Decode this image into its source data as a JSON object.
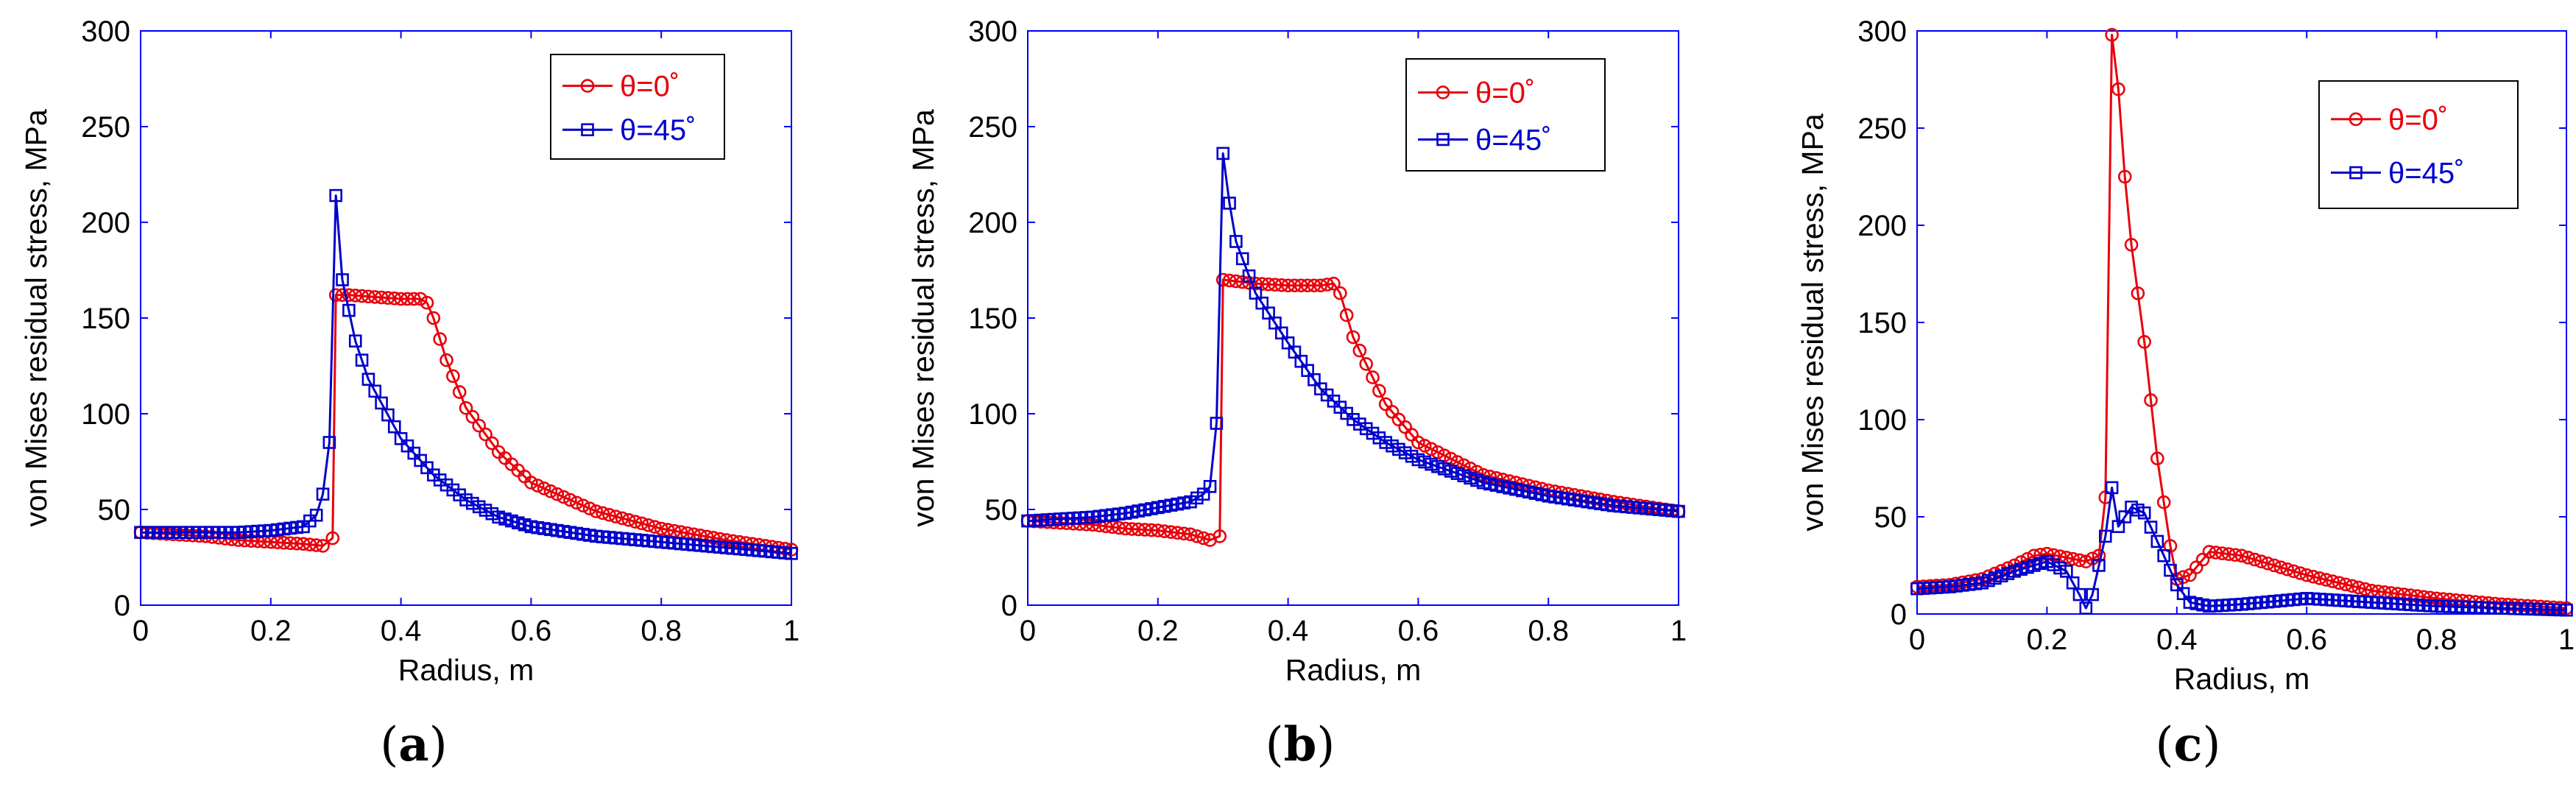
{
  "figure": {
    "panel_labels": [
      "(a)",
      "(b)",
      "(c)"
    ]
  },
  "colors": {
    "axes": "#0000ff",
    "red": "#e8000b",
    "blue": "#0000cc"
  },
  "chart_data": [
    {
      "type": "line",
      "panel": "(a)",
      "xlabel": "Radius, m",
      "ylabel": "von Mises residual stress, MPa",
      "xlim": [
        0,
        1
      ],
      "ylim": [
        0,
        300
      ],
      "xticks": [
        0,
        0.2,
        0.4,
        0.6,
        0.8,
        1
      ],
      "xtick_labels": [
        "0",
        "0.2",
        "0.4",
        "0.6",
        "0.8",
        "1"
      ],
      "yticks": [
        0,
        50,
        100,
        150,
        200,
        250,
        300
      ],
      "ytick_labels": [
        "0",
        "50",
        "100",
        "150",
        "200",
        "250",
        "300"
      ],
      "legend": "top-right",
      "series": [
        {
          "name": "θ=0˚",
          "color": "#e8000b",
          "marker": "circle",
          "x": [
            0,
            0.05,
            0.1,
            0.15,
            0.2,
            0.25,
            0.28,
            0.295,
            0.3,
            0.32,
            0.36,
            0.4,
            0.43,
            0.44,
            0.45,
            0.47,
            0.5,
            0.55,
            0.6,
            0.7,
            0.8,
            0.9,
            1.0
          ],
          "y": [
            38,
            37,
            36,
            34,
            33,
            32,
            31,
            35,
            162,
            162,
            161,
            160,
            160,
            158,
            150,
            128,
            103,
            80,
            64,
            49,
            40,
            34,
            29
          ]
        },
        {
          "name": "θ=45˚",
          "color": "#0000cc",
          "marker": "square",
          "x": [
            0,
            0.05,
            0.1,
            0.15,
            0.2,
            0.25,
            0.27,
            0.28,
            0.29,
            0.3,
            0.31,
            0.33,
            0.35,
            0.4,
            0.45,
            0.5,
            0.55,
            0.6,
            0.7,
            0.8,
            0.9,
            1.0
          ],
          "y": [
            38,
            38,
            38,
            38,
            39,
            41,
            47,
            58,
            85,
            214,
            170,
            138,
            118,
            87,
            68,
            55,
            46,
            41,
            36,
            33,
            30,
            27
          ]
        }
      ]
    },
    {
      "type": "line",
      "panel": "(b)",
      "xlabel": "Radius, m",
      "ylabel": "von Mises residual stress, MPa",
      "xlim": [
        0,
        1
      ],
      "ylim": [
        0,
        300
      ],
      "xticks": [
        0,
        0.2,
        0.4,
        0.6,
        0.8,
        1
      ],
      "xtick_labels": [
        "0",
        "0.2",
        "0.4",
        "0.6",
        "0.8",
        "1"
      ],
      "yticks": [
        0,
        50,
        100,
        150,
        200,
        250,
        300
      ],
      "ytick_labels": [
        "0",
        "50",
        "100",
        "150",
        "200",
        "250",
        "300"
      ],
      "legend": "top-right",
      "series": [
        {
          "name": "θ=0˚",
          "color": "#e8000b",
          "marker": "circle",
          "x": [
            0,
            0.05,
            0.1,
            0.15,
            0.2,
            0.25,
            0.28,
            0.295,
            0.3,
            0.35,
            0.4,
            0.45,
            0.47,
            0.48,
            0.5,
            0.55,
            0.6,
            0.7,
            0.8,
            0.9,
            1.0
          ],
          "y": [
            44,
            43,
            42,
            40,
            39,
            37,
            34,
            36,
            170,
            168,
            167,
            167,
            168,
            163,
            140,
            105,
            85,
            68,
            60,
            54,
            49
          ]
        },
        {
          "name": "θ=45˚",
          "color": "#0000cc",
          "marker": "square",
          "x": [
            0,
            0.05,
            0.1,
            0.15,
            0.2,
            0.25,
            0.27,
            0.28,
            0.29,
            0.3,
            0.31,
            0.32,
            0.35,
            0.4,
            0.45,
            0.5,
            0.55,
            0.6,
            0.7,
            0.8,
            0.9,
            1.0
          ],
          "y": [
            44,
            45,
            46,
            48,
            51,
            54,
            58,
            62,
            95,
            236,
            210,
            190,
            163,
            137,
            113,
            97,
            85,
            76,
            64,
            57,
            52,
            49
          ]
        }
      ]
    },
    {
      "type": "line",
      "panel": "(c)",
      "xlabel": "Radius, m",
      "ylabel": "von Mises residual stress, MPa",
      "xlim": [
        0,
        1
      ],
      "ylim": [
        0,
        300
      ],
      "xticks": [
        0,
        0.2,
        0.4,
        0.6,
        0.8,
        1
      ],
      "xtick_labels": [
        "0",
        "0.2",
        "0.4",
        "0.6",
        "0.8",
        "1"
      ],
      "yticks": [
        0,
        50,
        100,
        150,
        200,
        250,
        300
      ],
      "ytick_labels": [
        "0",
        "50",
        "100",
        "150",
        "200",
        "250",
        "300"
      ],
      "legend": "top-right",
      "series": [
        {
          "name": "θ=0˚",
          "color": "#e8000b",
          "marker": "circle",
          "x": [
            0,
            0.05,
            0.1,
            0.15,
            0.18,
            0.2,
            0.23,
            0.26,
            0.28,
            0.29,
            0.3,
            0.31,
            0.32,
            0.33,
            0.35,
            0.37,
            0.39,
            0.4,
            0.42,
            0.45,
            0.5,
            0.6,
            0.7,
            0.8,
            0.9,
            1.0
          ],
          "y": [
            14,
            15,
            18,
            25,
            30,
            31,
            29,
            27,
            30,
            60,
            298,
            270,
            225,
            190,
            140,
            80,
            35,
            18,
            20,
            32,
            30,
            20,
            12,
            8,
            5,
            3
          ]
        },
        {
          "name": "θ=45˚",
          "color": "#0000cc",
          "marker": "square",
          "x": [
            0,
            0.05,
            0.1,
            0.15,
            0.2,
            0.23,
            0.25,
            0.26,
            0.27,
            0.28,
            0.29,
            0.3,
            0.31,
            0.33,
            0.35,
            0.38,
            0.4,
            0.42,
            0.45,
            0.5,
            0.6,
            0.7,
            0.8,
            0.9,
            1.0
          ],
          "y": [
            13,
            14,
            16,
            22,
            27,
            22,
            10,
            3,
            10,
            25,
            40,
            65,
            45,
            55,
            52,
            30,
            15,
            6,
            4,
            5,
            8,
            6,
            4,
            3,
            2
          ]
        }
      ]
    }
  ]
}
